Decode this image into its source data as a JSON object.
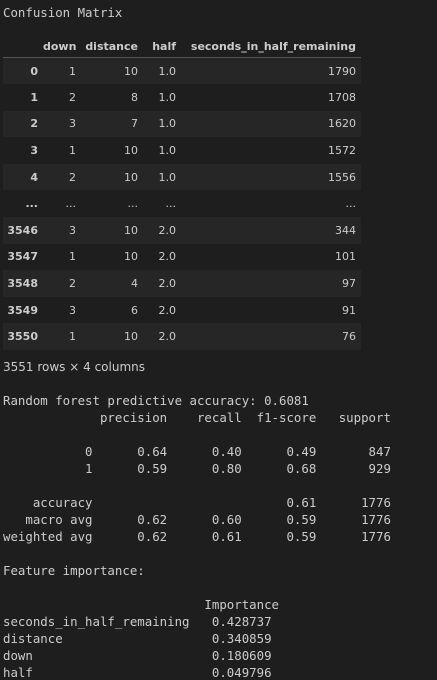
{
  "heading": "Confusion Matrix",
  "dataframe": {
    "columns": [
      "",
      "down",
      "distance",
      "half",
      "seconds_in_half_remaining"
    ],
    "rows": [
      [
        "0",
        "1",
        "10",
        "1.0",
        "1790"
      ],
      [
        "1",
        "2",
        "8",
        "1.0",
        "1708"
      ],
      [
        "2",
        "3",
        "7",
        "1.0",
        "1620"
      ],
      [
        "3",
        "1",
        "10",
        "1.0",
        "1572"
      ],
      [
        "4",
        "2",
        "10",
        "1.0",
        "1556"
      ],
      [
        "...",
        "...",
        "...",
        "...",
        "..."
      ],
      [
        "3546",
        "3",
        "10",
        "2.0",
        "344"
      ],
      [
        "3547",
        "1",
        "10",
        "2.0",
        "101"
      ],
      [
        "3548",
        "2",
        "4",
        "2.0",
        "97"
      ],
      [
        "3549",
        "3",
        "6",
        "2.0",
        "91"
      ],
      [
        "3550",
        "1",
        "10",
        "2.0",
        "76"
      ]
    ],
    "shape_text": "3551 rows × 4 columns"
  },
  "rf_output": {
    "accuracy_line": "Random forest predictive accuracy: 0.6081",
    "report": {
      "headers": [
        "precision",
        "recall",
        "f1-score",
        "support"
      ],
      "classes": [
        {
          "label": "0",
          "precision": "0.64",
          "recall": "0.40",
          "f1": "0.49",
          "support": "847"
        },
        {
          "label": "1",
          "precision": "0.59",
          "recall": "0.80",
          "f1": "0.68",
          "support": "929"
        }
      ],
      "accuracy": {
        "label": "accuracy",
        "f1": "0.61",
        "support": "1776"
      },
      "averages": [
        {
          "label": "macro avg",
          "precision": "0.62",
          "recall": "0.60",
          "f1": "0.59",
          "support": "1776"
        },
        {
          "label": "weighted avg",
          "precision": "0.62",
          "recall": "0.61",
          "f1": "0.59",
          "support": "1776"
        }
      ]
    },
    "feature_importance_label": "Feature importance:",
    "importance_header": "Importance",
    "features": [
      {
        "name": "seconds_in_half_remaining",
        "value": "0.428737"
      },
      {
        "name": "distance",
        "value": "0.340859"
      },
      {
        "name": "down",
        "value": "0.180609"
      },
      {
        "name": "half",
        "value": "0.049796"
      }
    ]
  }
}
